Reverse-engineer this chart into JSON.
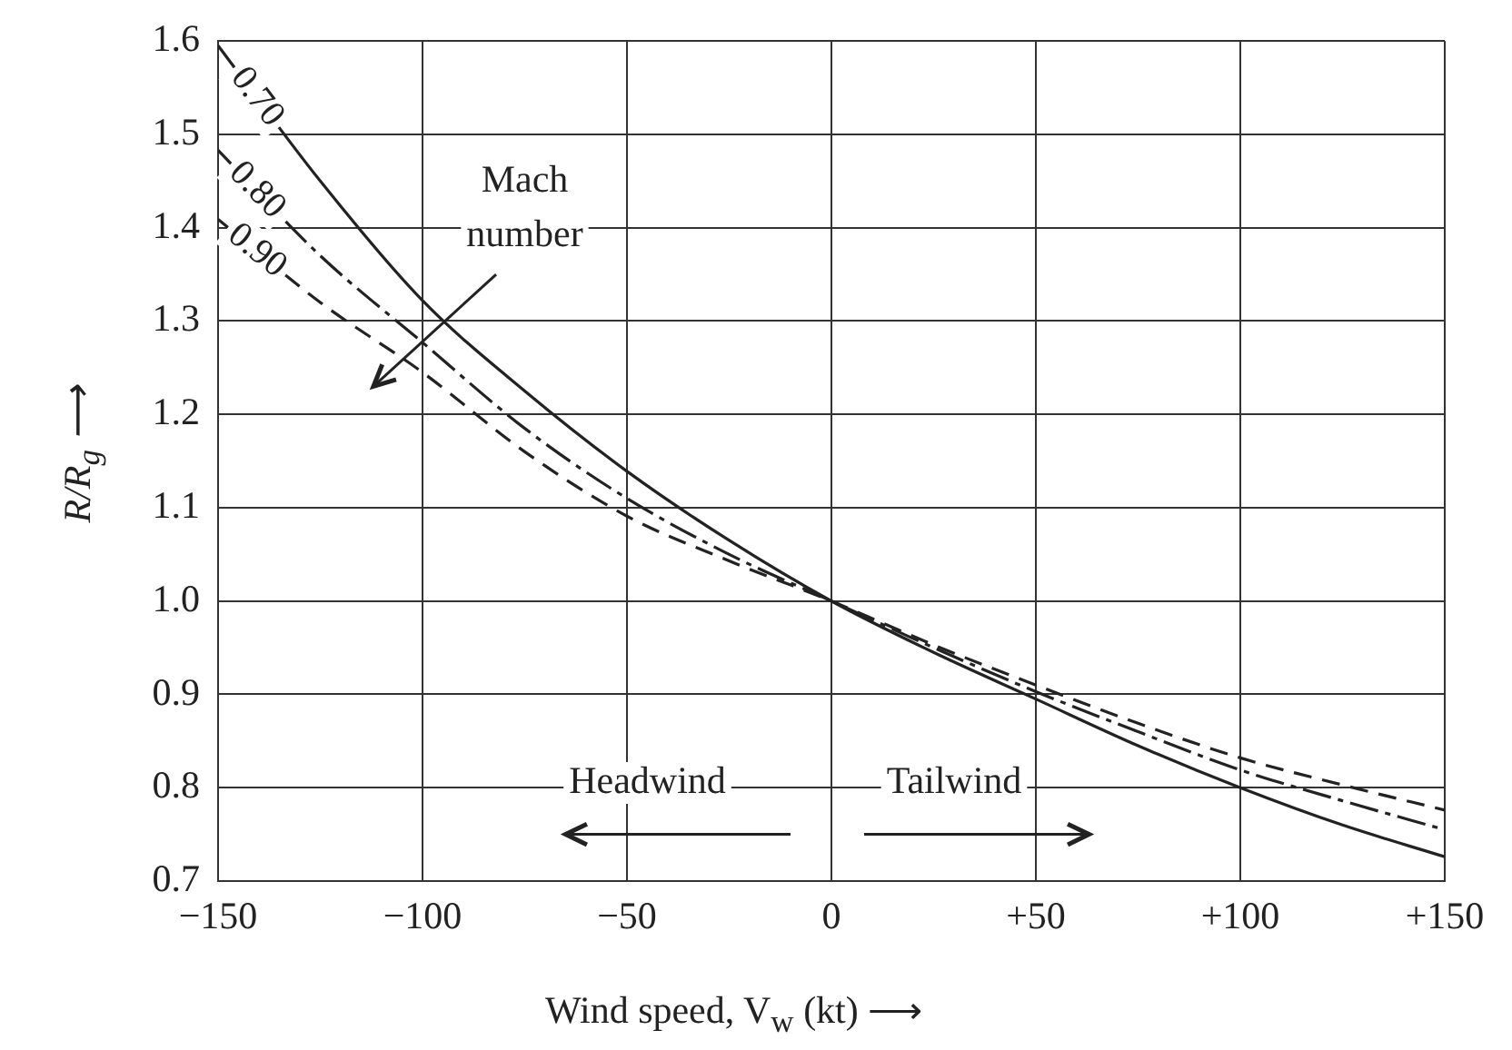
{
  "chart_data": {
    "type": "line",
    "xlabel": "Wind speed, V$_{w}$ (kt) ⟶",
    "ylabel": "R/R$_{g}$ ⟶",
    "x": [
      -150,
      -125,
      -100,
      -75,
      -50,
      -25,
      0,
      25,
      50,
      75,
      100,
      125,
      150
    ],
    "series": [
      {
        "name": "0.70",
        "color": "#222222",
        "line_style": "solid",
        "values": [
          1.595,
          1.45,
          1.322,
          1.225,
          1.139,
          1.065,
          1.0,
          0.945,
          0.895,
          0.845,
          0.8,
          0.76,
          0.726
        ]
      },
      {
        "name": "0.80",
        "color": "#222222",
        "line_style": "dashed",
        "values": [
          1.483,
          1.37,
          1.277,
          1.185,
          1.11,
          1.05,
          1.0,
          0.95,
          0.903,
          0.86,
          0.819,
          0.786,
          0.755
        ]
      },
      {
        "name": "0.90",
        "color": "#222222",
        "line_style": "dashed",
        "values": [
          1.409,
          1.32,
          1.245,
          1.16,
          1.091,
          1.043,
          1.0,
          0.953,
          0.91,
          0.869,
          0.832,
          0.803,
          0.776
        ]
      }
    ],
    "xlim": [
      -150,
      150
    ],
    "ylim": [
      0.7,
      1.6
    ],
    "xticks": [
      {
        "value": -150,
        "label": "−150"
      },
      {
        "value": -100,
        "label": "−100"
      },
      {
        "value": -50,
        "label": "−50"
      },
      0,
      {
        "value": 50,
        "label": "+50"
      },
      {
        "value": 100,
        "label": "+100"
      },
      {
        "value": 150,
        "label": "+150"
      }
    ],
    "yticks": [
      {
        "value": 0.7,
        "label": "0.7"
      },
      {
        "value": 0.8,
        "label": "0.8"
      },
      {
        "value": 0.9,
        "label": "0.9"
      },
      {
        "value": 1.0,
        "label": "1.0"
      },
      {
        "value": 1.1,
        "label": "1.1"
      },
      {
        "value": 1.2,
        "label": "1.2"
      },
      {
        "value": 1.3,
        "label": "1.3"
      },
      {
        "value": 1.4,
        "label": "1.4"
      },
      {
        "value": 1.5,
        "label": "1.5"
      },
      {
        "value": 1.6,
        "label": "1.6"
      }
    ],
    "grid": true,
    "legend": false,
    "marker": "none",
    "annotations": [
      "Mach number",
      "Headwind",
      "Tailwind"
    ]
  }
}
